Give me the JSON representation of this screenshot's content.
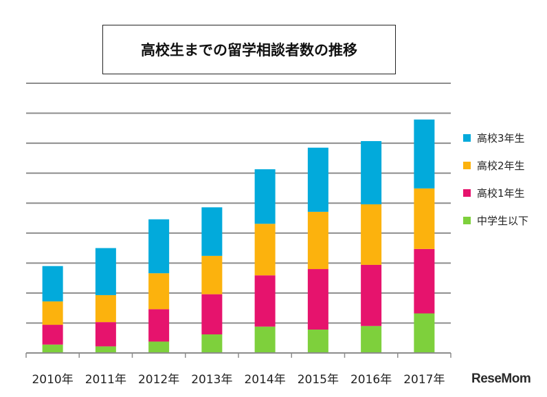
{
  "chart_data": {
    "type": "bar",
    "stacked": true,
    "title": "高校生までの留学相談者数の推移",
    "categories": [
      "2010年",
      "2011年",
      "2012年",
      "2013年",
      "2014年",
      "2015年",
      "2016年",
      "2017年"
    ],
    "series": [
      {
        "name": "中学生以下",
        "color": "#7ed03c",
        "values": [
          0.28,
          0.22,
          0.38,
          0.62,
          0.88,
          0.78,
          0.9,
          1.32
        ]
      },
      {
        "name": "高校1年生",
        "color": "#e6136d",
        "values": [
          0.66,
          0.81,
          1.08,
          1.34,
          1.71,
          2.02,
          2.04,
          2.15
        ]
      },
      {
        "name": "高校2年生",
        "color": "#fcb20d",
        "values": [
          0.78,
          0.9,
          1.2,
          1.28,
          1.72,
          1.91,
          2.02,
          2.02
        ]
      },
      {
        "name": "高校3年生",
        "color": "#02aadb",
        "values": [
          1.18,
          1.57,
          1.8,
          1.62,
          1.82,
          2.14,
          2.11,
          2.3
        ]
      }
    ],
    "ylim": [
      0,
      9
    ],
    "grid": true,
    "legend": "right",
    "legend_order": [
      "高校3年生",
      "高校2年生",
      "高校1年生",
      "中学生以下"
    ],
    "watermark": "ReseMom"
  }
}
